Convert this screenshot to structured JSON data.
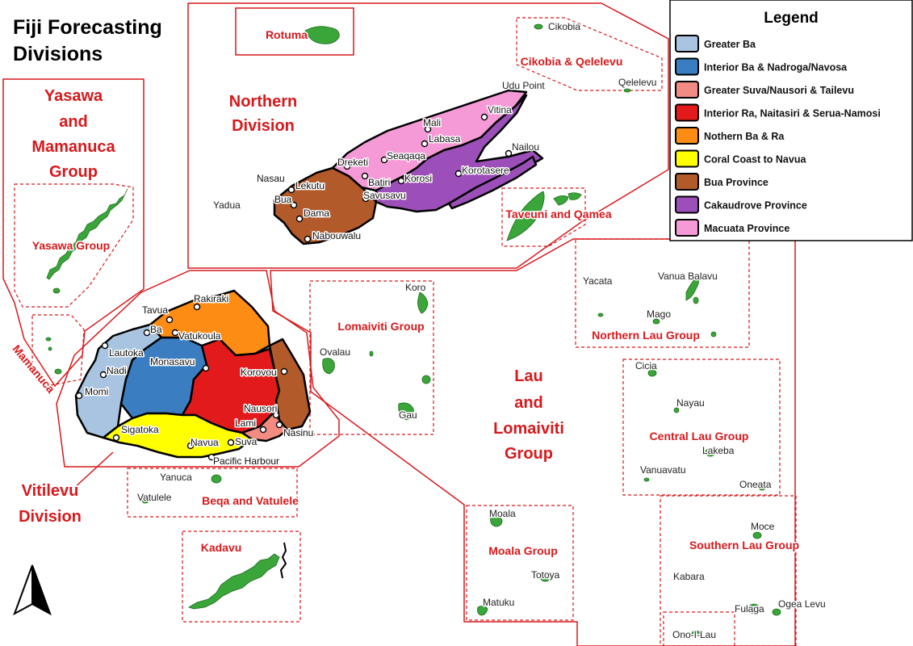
{
  "title": {
    "line1": "Fiji Forecasting",
    "line2": "Divisions"
  },
  "legend": {
    "title": "Legend",
    "items": [
      {
        "label": "Greater Ba",
        "color": "#a8c4e0"
      },
      {
        "label": "Interior Ba & Nadroga/Navosa",
        "color": "#3a7dc0"
      },
      {
        "label": "Greater Suva/Nausori & Tailevu",
        "color": "#f28b82"
      },
      {
        "label": "Interior Ra, Naitasiri & Serua-Namosi",
        "color": "#e31a1c"
      },
      {
        "label": "Nothern Ba & Ra",
        "color": "#fd8c14"
      },
      {
        "label": "Coral Coast to Navua",
        "color": "#ffff00"
      },
      {
        "label": "Bua Province",
        "color": "#b35a2b"
      },
      {
        "label": "Cakaudrove Province",
        "color": "#9c4fb8"
      },
      {
        "label": "Macuata Province",
        "color": "#f59ad6"
      }
    ]
  },
  "divisions": {
    "northern": {
      "line1": "Northern",
      "line2": "Division"
    },
    "yasawa": {
      "line1": "Yasawa",
      "line2": "and",
      "line3": "Mamanuca",
      "line4": "Group"
    },
    "lau": {
      "line1": "Lau",
      "line2": "and",
      "line3": "Lomaiviti",
      "line4": "Group"
    },
    "vitilevu": {
      "line1": "Vitilevu",
      "line2": "Division"
    }
  },
  "regions": {
    "rotuma": "Rotuma",
    "cikobia_qelelevu": "Cikobia & Qelelevu",
    "taveuni_qamea": "Taveuni and Qamea",
    "yasawa_group": "Yasawa Group",
    "mamanuca": "Mamanuca",
    "lomaiviti_group": "Lomaiviti Group",
    "northern_lau": "Northern Lau Group",
    "central_lau": "Central Lau Group",
    "moala_group": "Moala Group",
    "southern_lau": "Southern Lau Group",
    "beqa_vatulele": "Beqa and Vatulele",
    "kadavu": "Kadavu"
  },
  "places": {
    "cikobia": "Cikobia",
    "qelelevu": "Qelelevu",
    "udu_point": "Udu Point",
    "vitina": "Vitina",
    "nailou": "Nailou",
    "korotasere": "Korotasere",
    "yadua": "Yadua",
    "koro": "Koro",
    "ovalau": "Ovalau",
    "gau": "Gau",
    "yacata": "Yacata",
    "vanua_balavu": "Vanua Balavu",
    "mago": "Mago",
    "cicia": "Cicia",
    "nayau": "Nayau",
    "lakeba": "Lakeba",
    "vanuavatu": "Vanuavatu",
    "oneata": "Oneata",
    "moala": "Moala",
    "totoya": "Totoya",
    "matuku": "Matuku",
    "moce": "Moce",
    "kabara": "Kabara",
    "fulaga": "Fulaga",
    "ogea_levu": "Ogea Levu",
    "ono_i_lau": "Ono-I-Lau",
    "yanuca": "Yanuca",
    "vatulele": "Vatulele"
  },
  "towns_vanualevu": {
    "mali": "Mali",
    "labasa": "Labasa",
    "seaqaqa": "Seaqaqa",
    "dreketi": "Dreketi",
    "batiri": "Batiri",
    "korosi": "Korosi",
    "nasau": "Nasau",
    "lekutu": "Lekutu",
    "bua": "Bua",
    "savusavu": "Savusavu",
    "dama": "Dama",
    "nabouwalu": "Nabouwalu"
  },
  "towns_vitilevu": {
    "rakiraki": "Rakiraki",
    "tavua": "Tavua",
    "ba": "Ba",
    "vatukoula": "Vatukoula",
    "lautoka": "Lautoka",
    "monasavu": "Monasavu",
    "nadi": "Nadi",
    "korovou": "Korovou",
    "momi": "Momi",
    "nausori": "Nausori",
    "lami": "Lami",
    "nasinu": "Nasinu",
    "sigatoka": "Sigatoka",
    "navua": "Navua",
    "suva": "Suva",
    "pacific_harbour": "Pacific Harbour"
  }
}
